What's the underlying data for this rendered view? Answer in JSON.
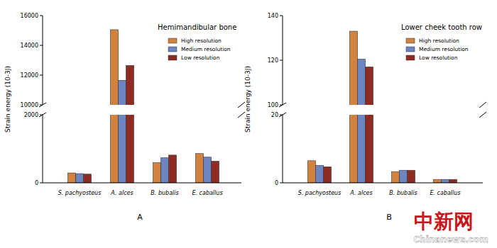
{
  "chart_data": [
    {
      "type": "bar",
      "title": "Hemimandibular bone",
      "y_label": "Strain energy (10-3J)",
      "categories": [
        "S. pachyosteus",
        "A. alces",
        "B. bubalis",
        "E. caballus"
      ],
      "series": [
        {
          "name": "High resolution",
          "color": "#d0823e",
          "values": [
            290,
            15050,
            590,
            860
          ]
        },
        {
          "name": "Medium resolution",
          "color": "#6c84c0",
          "values": [
            270,
            11650,
            735,
            755
          ]
        },
        {
          "name": "Low resolution",
          "color": "#8e2b22",
          "values": [
            255,
            12650,
            815,
            635
          ]
        }
      ],
      "ylim": [
        0,
        16000
      ],
      "yticks": [
        0,
        2000,
        10000,
        12000,
        14000,
        16000
      ],
      "axis_break": [
        2000,
        10000
      ],
      "legend": "upper right",
      "annotations": [
        "A"
      ]
    },
    {
      "type": "bar",
      "title": "Lower cheek tooth row",
      "y_label": "Strain energy (10-3J)",
      "categories": [
        "S. pachyosteus",
        "A. alces",
        "B. bubalis",
        "E. caballus"
      ],
      "series": [
        {
          "name": "High resolution",
          "color": "#d0823e",
          "values": [
            6.5,
            133,
            3.3,
            1.0
          ]
        },
        {
          "name": "Medium resolution",
          "color": "#6c84c0",
          "values": [
            5.1,
            120.5,
            3.7,
            1.0
          ]
        },
        {
          "name": "Low resolution",
          "color": "#8e2b22",
          "values": [
            4.7,
            117,
            3.7,
            1.0
          ]
        }
      ],
      "ylim": [
        0,
        140
      ],
      "yticks": [
        0,
        20,
        100,
        120,
        140
      ],
      "axis_break": [
        20,
        100
      ],
      "legend": "upper right",
      "annotations": [
        "B"
      ]
    }
  ],
  "watermark": [
    "中新网",
    "Chinanews.com"
  ]
}
